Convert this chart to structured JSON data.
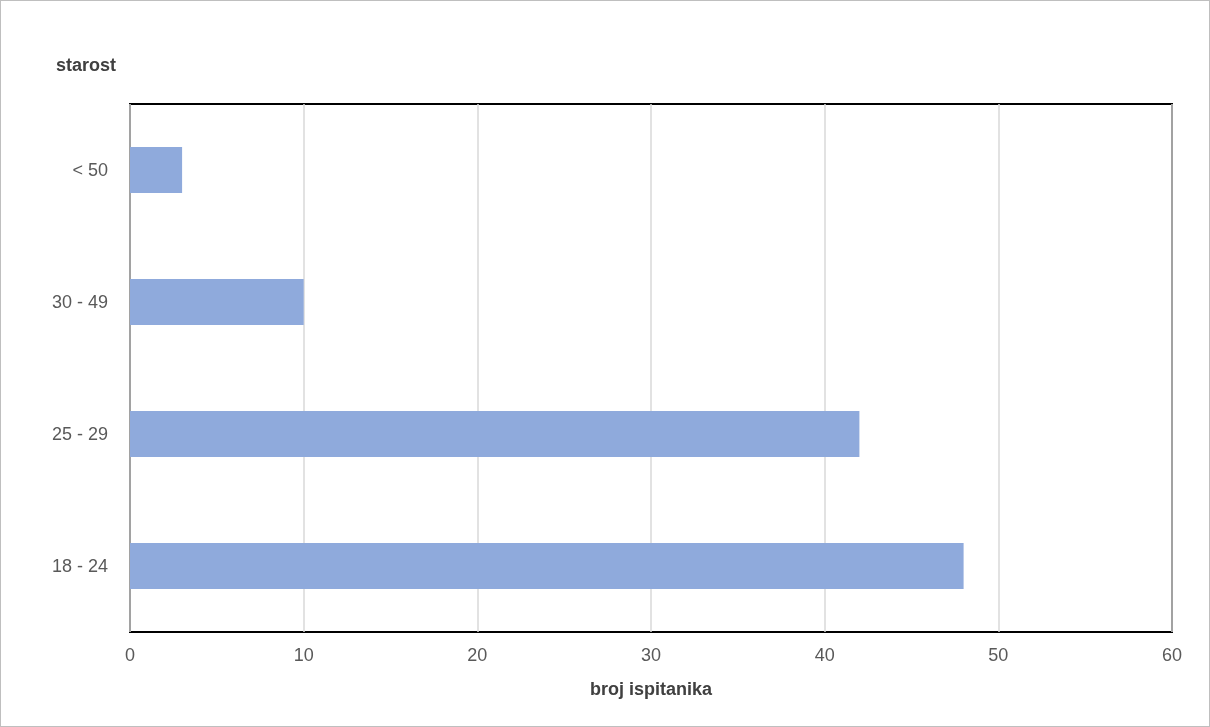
{
  "chart_data": {
    "type": "bar",
    "orientation": "horizontal",
    "ylabel": "starost",
    "xlabel": "broj ispitanika",
    "categories": [
      "< 50",
      "30 - 49",
      "25 - 29",
      "18 - 24"
    ],
    "values": [
      3,
      10,
      42,
      48
    ],
    "color": "#8faadc",
    "xlim": [
      0,
      60
    ],
    "xticks": [
      0,
      10,
      20,
      30,
      40,
      50,
      60
    ],
    "grid": "x"
  }
}
